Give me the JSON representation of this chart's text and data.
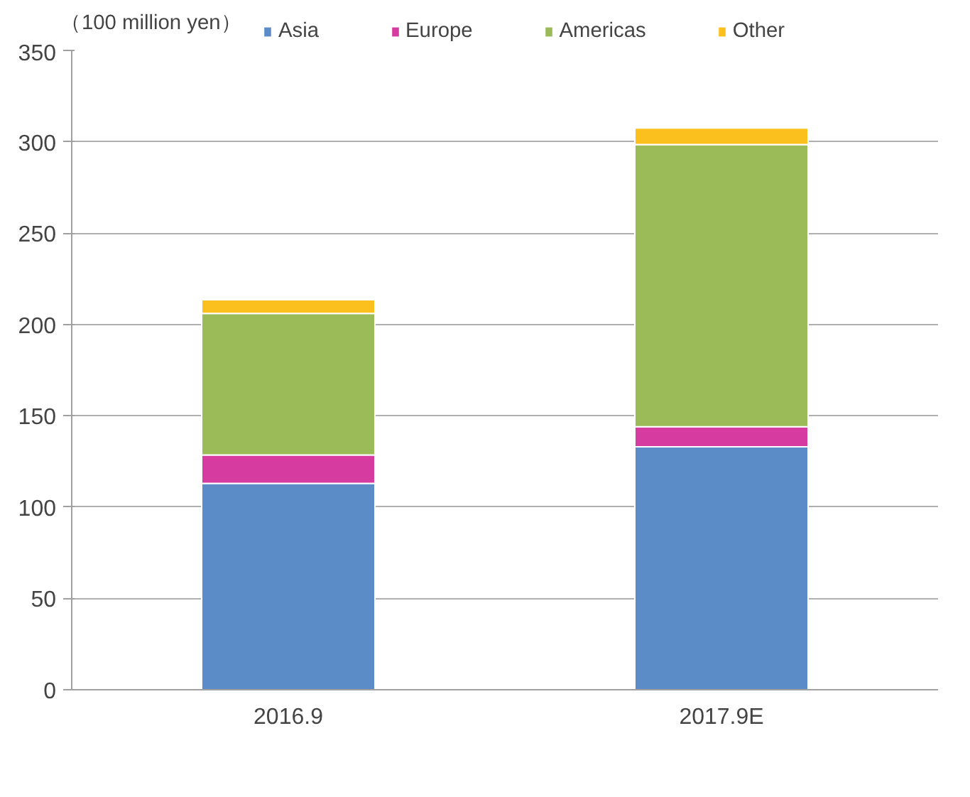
{
  "chart_data": {
    "type": "bar",
    "stacked": true,
    "ylabel": "（100 million yen）",
    "categories": [
      "2016.9",
      "2017.9E"
    ],
    "series": [
      {
        "name": "Asia",
        "color": "#5b8cc8",
        "values": [
          113,
          133
        ]
      },
      {
        "name": "Europe",
        "color": "#d63ba0",
        "values": [
          15.5,
          11
        ]
      },
      {
        "name": "Americas",
        "color": "#9bbb59",
        "values": [
          77.5,
          154.5
        ]
      },
      {
        "name": "Other",
        "color": "#fcc01e",
        "values": [
          7.5,
          9
        ]
      }
    ],
    "ylim": [
      0,
      350
    ],
    "yticks": [
      0,
      50,
      100,
      150,
      200,
      250,
      300,
      350
    ],
    "grid": "y",
    "legend": "top"
  }
}
